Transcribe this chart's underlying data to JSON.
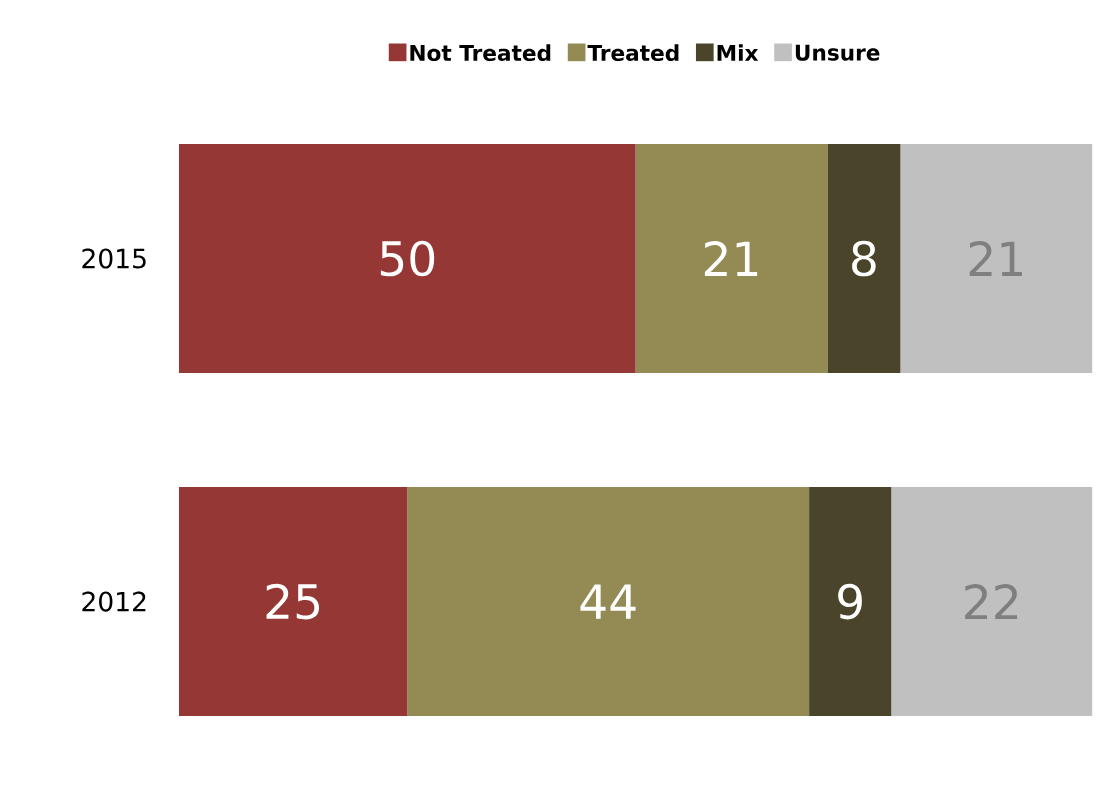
{
  "chart_data": {
    "type": "bar",
    "orientation": "horizontal",
    "stacked": true,
    "categories": [
      "2015",
      "2012"
    ],
    "series": [
      {
        "name": "Not Treated",
        "color": "#953735",
        "values": [
          50,
          25
        ]
      },
      {
        "name": "Treated",
        "color": "#948a54",
        "values": [
          21,
          44
        ]
      },
      {
        "name": "Mix",
        "color": "#4a452a",
        "values": [
          8,
          9
        ]
      },
      {
        "name": "Unsure",
        "color": "#c0c0c0",
        "values": [
          21,
          22
        ]
      }
    ],
    "tick_labels": "y",
    "data_labels": true,
    "legend": "top"
  }
}
